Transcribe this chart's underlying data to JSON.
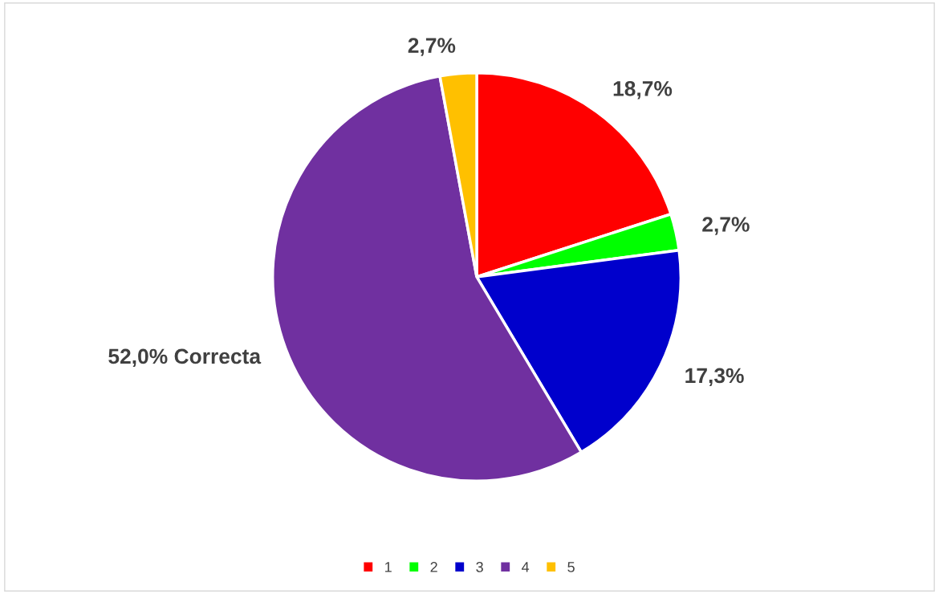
{
  "chart_data": {
    "type": "pie",
    "categories": [
      "1",
      "2",
      "3",
      "4",
      "5"
    ],
    "values": [
      18.7,
      2.7,
      17.3,
      52.0,
      2.7
    ],
    "colors": [
      "#ff0000",
      "#00ff00",
      "#0000cc",
      "#7030a0",
      "#ffc000"
    ],
    "value_labels": [
      "18,7%",
      "2,7%",
      "17,3%",
      "52,0% Correcta",
      "2,7%"
    ],
    "legend": "bottom"
  }
}
